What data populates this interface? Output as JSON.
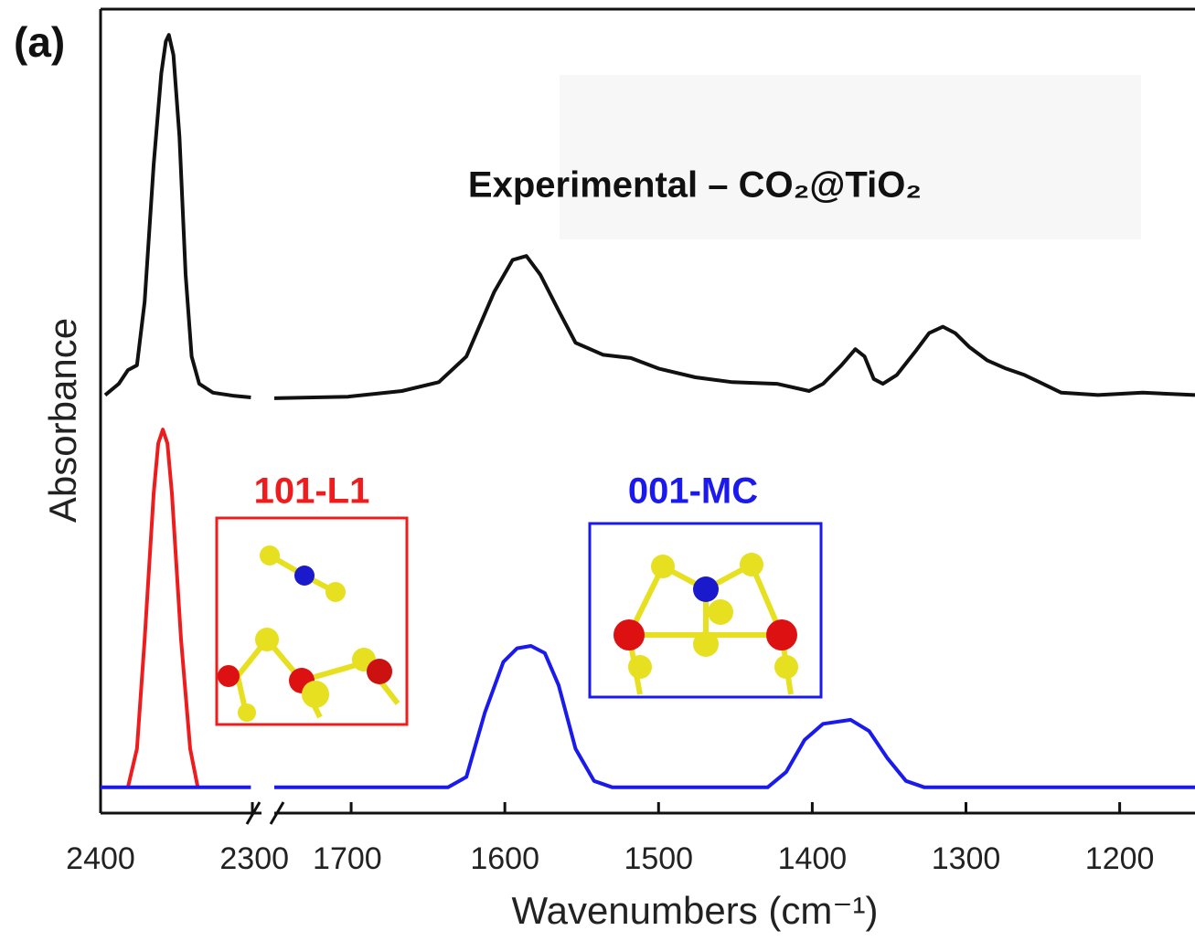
{
  "chart_data": {
    "type": "line",
    "panel_label": "(a)",
    "y_label": "Absorbance",
    "x_label": "Wavenumbers (cm⁻¹)",
    "ylim": [
      0,
      100
    ],
    "x_segments": [
      {
        "xlim": [
          2400,
          2294
        ],
        "xticks": [
          2400,
          2300
        ]
      },
      {
        "xlim": [
          1750,
          1151
        ],
        "xticks": [
          1700,
          1600,
          1500,
          1400,
          1300,
          1200
        ]
      }
    ],
    "series": [
      {
        "name": "Experimental – CO₂@TiO₂",
        "color": "#111111",
        "x": [
          2397,
          2388,
          2382,
          2376,
          2371,
          2365,
          2360,
          2357,
          2355,
          2352,
          2348,
          2344,
          2340,
          2335,
          2326,
          2312,
          2301,
          2000,
          1750,
          1702,
          1667,
          1643,
          1625,
          1607,
          1595,
          1586,
          1577,
          1565,
          1554,
          1536,
          1518,
          1500,
          1476,
          1452,
          1423,
          1402,
          1393,
          1381,
          1372,
          1366,
          1360,
          1354,
          1345,
          1333,
          1324,
          1315,
          1307,
          1298,
          1286,
          1274,
          1262,
          1250,
          1238,
          1214,
          1185,
          1151
        ],
        "values": [
          52.0,
          53.4,
          55.1,
          55.7,
          63.6,
          80.7,
          92.0,
          96.0,
          96.8,
          94.3,
          84.1,
          67.0,
          56.8,
          53.4,
          52.3,
          51.9,
          51.7,
          null,
          51.6,
          51.8,
          52.5,
          53.6,
          56.8,
          64.8,
          68.8,
          69.3,
          67.0,
          62.5,
          58.5,
          57.0,
          56.6,
          55.3,
          54.2,
          53.6,
          53.4,
          52.5,
          53.4,
          55.7,
          57.7,
          56.8,
          54.0,
          53.4,
          54.5,
          57.4,
          59.7,
          60.5,
          59.7,
          58.0,
          56.3,
          55.3,
          54.5,
          53.4,
          52.3,
          52.0,
          52.3,
          52.0
        ]
      },
      {
        "name": "101-L1",
        "color": "#ee1c1c",
        "x": [
          2382,
          2376,
          2371,
          2365,
          2362,
          2359,
          2356,
          2353,
          2347,
          2341,
          2336
        ],
        "values": [
          3.2,
          8.0,
          21.6,
          39.8,
          46.0,
          47.7,
          46.0,
          39.8,
          21.6,
          8.0,
          3.2
        ]
      },
      {
        "name": "001-MC",
        "color": "#1a1aee",
        "x": [
          2400,
          2301,
          2000,
          1750,
          1637,
          1625,
          1613,
          1601,
          1592,
          1583,
          1574,
          1565,
          1554,
          1542,
          1530,
          1429,
          1417,
          1405,
          1393,
          1375,
          1363,
          1351,
          1339,
          1327,
          1151
        ],
        "values": [
          3.2,
          3.2,
          null,
          3.2,
          3.2,
          4.5,
          12.5,
          18.8,
          20.5,
          20.8,
          19.9,
          15.9,
          8.0,
          4.0,
          3.2,
          3.2,
          5.1,
          9.1,
          11.1,
          11.6,
          10.2,
          6.8,
          4.0,
          3.2,
          3.2
        ]
      }
    ]
  }
}
